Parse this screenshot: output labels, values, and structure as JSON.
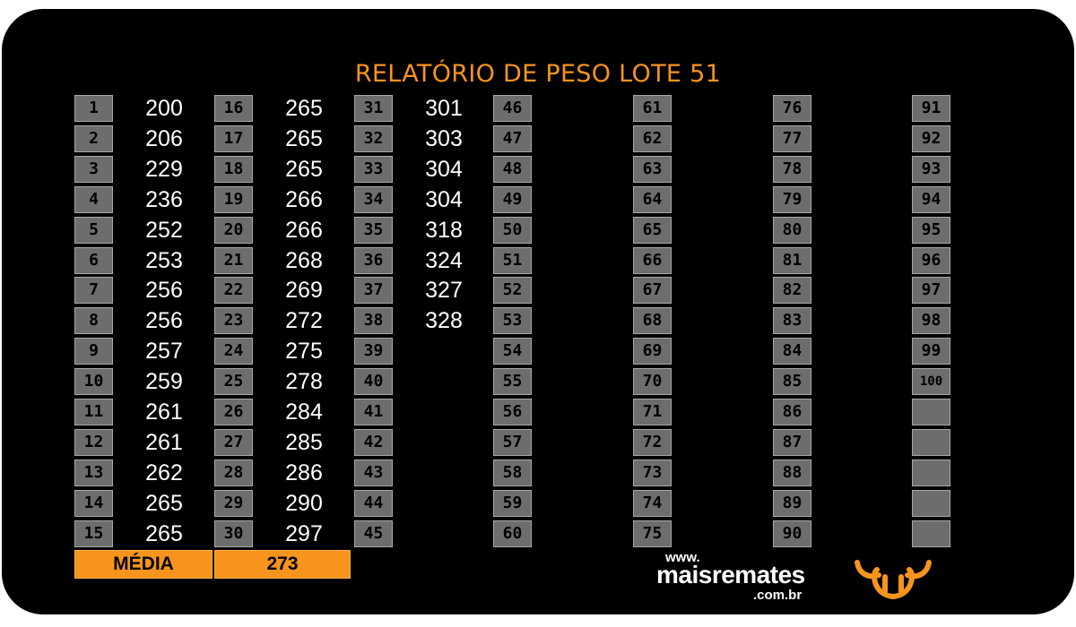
{
  "report": {
    "title": "RELATÓRIO DE PESO LOTE 51",
    "accent_color": "#f7941d",
    "cell_color": "#6d6d6d",
    "background_color": "#000000"
  },
  "lots": [
    {
      "number": "1",
      "weight": "200"
    },
    {
      "number": "2",
      "weight": "206"
    },
    {
      "number": "3",
      "weight": "229"
    },
    {
      "number": "4",
      "weight": "236"
    },
    {
      "number": "5",
      "weight": "252"
    },
    {
      "number": "6",
      "weight": "253"
    },
    {
      "number": "7",
      "weight": "256"
    },
    {
      "number": "8",
      "weight": "256"
    },
    {
      "number": "9",
      "weight": "257"
    },
    {
      "number": "10",
      "weight": "259"
    },
    {
      "number": "11",
      "weight": "261"
    },
    {
      "number": "12",
      "weight": "261"
    },
    {
      "number": "13",
      "weight": "262"
    },
    {
      "number": "14",
      "weight": "265"
    },
    {
      "number": "15",
      "weight": "265"
    },
    {
      "number": "16",
      "weight": "265"
    },
    {
      "number": "17",
      "weight": "265"
    },
    {
      "number": "18",
      "weight": "265"
    },
    {
      "number": "19",
      "weight": "266"
    },
    {
      "number": "20",
      "weight": "266"
    },
    {
      "number": "21",
      "weight": "268"
    },
    {
      "number": "22",
      "weight": "269"
    },
    {
      "number": "23",
      "weight": "272"
    },
    {
      "number": "24",
      "weight": "275"
    },
    {
      "number": "25",
      "weight": "278"
    },
    {
      "number": "26",
      "weight": "284"
    },
    {
      "number": "27",
      "weight": "285"
    },
    {
      "number": "28",
      "weight": "286"
    },
    {
      "number": "29",
      "weight": "290"
    },
    {
      "number": "30",
      "weight": "297"
    },
    {
      "number": "31",
      "weight": "301"
    },
    {
      "number": "32",
      "weight": "303"
    },
    {
      "number": "33",
      "weight": "304"
    },
    {
      "number": "34",
      "weight": "304"
    },
    {
      "number": "35",
      "weight": "318"
    },
    {
      "number": "36",
      "weight": "324"
    },
    {
      "number": "37",
      "weight": "327"
    },
    {
      "number": "38",
      "weight": "328"
    },
    {
      "number": "39",
      "weight": ""
    },
    {
      "number": "40",
      "weight": ""
    },
    {
      "number": "41",
      "weight": ""
    },
    {
      "number": "42",
      "weight": ""
    },
    {
      "number": "43",
      "weight": ""
    },
    {
      "number": "44",
      "weight": ""
    },
    {
      "number": "45",
      "weight": ""
    },
    {
      "number": "46",
      "weight": ""
    },
    {
      "number": "47",
      "weight": ""
    },
    {
      "number": "48",
      "weight": ""
    },
    {
      "number": "49",
      "weight": ""
    },
    {
      "number": "50",
      "weight": ""
    },
    {
      "number": "51",
      "weight": ""
    },
    {
      "number": "52",
      "weight": ""
    },
    {
      "number": "53",
      "weight": ""
    },
    {
      "number": "54",
      "weight": ""
    },
    {
      "number": "55",
      "weight": ""
    },
    {
      "number": "56",
      "weight": ""
    },
    {
      "number": "57",
      "weight": ""
    },
    {
      "number": "58",
      "weight": ""
    },
    {
      "number": "59",
      "weight": ""
    },
    {
      "number": "60",
      "weight": ""
    },
    {
      "number": "61",
      "weight": ""
    },
    {
      "number": "62",
      "weight": ""
    },
    {
      "number": "63",
      "weight": ""
    },
    {
      "number": "64",
      "weight": ""
    },
    {
      "number": "65",
      "weight": ""
    },
    {
      "number": "66",
      "weight": ""
    },
    {
      "number": "67",
      "weight": ""
    },
    {
      "number": "68",
      "weight": ""
    },
    {
      "number": "69",
      "weight": ""
    },
    {
      "number": "70",
      "weight": ""
    },
    {
      "number": "71",
      "weight": ""
    },
    {
      "number": "72",
      "weight": ""
    },
    {
      "number": "73",
      "weight": ""
    },
    {
      "number": "74",
      "weight": ""
    },
    {
      "number": "75",
      "weight": ""
    },
    {
      "number": "76",
      "weight": ""
    },
    {
      "number": "77",
      "weight": ""
    },
    {
      "number": "78",
      "weight": ""
    },
    {
      "number": "79",
      "weight": ""
    },
    {
      "number": "80",
      "weight": ""
    },
    {
      "number": "81",
      "weight": ""
    },
    {
      "number": "82",
      "weight": ""
    },
    {
      "number": "83",
      "weight": ""
    },
    {
      "number": "84",
      "weight": ""
    },
    {
      "number": "85",
      "weight": ""
    },
    {
      "number": "86",
      "weight": ""
    },
    {
      "number": "87",
      "weight": ""
    },
    {
      "number": "88",
      "weight": ""
    },
    {
      "number": "89",
      "weight": ""
    },
    {
      "number": "90",
      "weight": ""
    },
    {
      "number": "91",
      "weight": ""
    },
    {
      "number": "92",
      "weight": ""
    },
    {
      "number": "93",
      "weight": ""
    },
    {
      "number": "94",
      "weight": ""
    },
    {
      "number": "95",
      "weight": ""
    },
    {
      "number": "96",
      "weight": ""
    },
    {
      "number": "97",
      "weight": ""
    },
    {
      "number": "98",
      "weight": ""
    },
    {
      "number": "99",
      "weight": ""
    },
    {
      "number": "100",
      "weight": ""
    },
    {
      "number": "",
      "weight": ""
    },
    {
      "number": "",
      "weight": ""
    },
    {
      "number": "",
      "weight": ""
    },
    {
      "number": "",
      "weight": ""
    },
    {
      "number": "",
      "weight": ""
    }
  ],
  "summary": {
    "label": "MÉDIA",
    "value": "273"
  },
  "brand": {
    "www": "www.",
    "name": "maisremates",
    "tld": ".com.br",
    "logo_icon": "bull-horns-icon"
  }
}
